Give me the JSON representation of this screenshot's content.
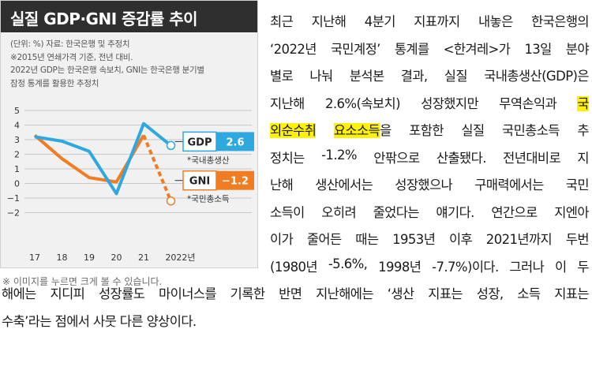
{
  "chart": {
    "title": "실질 GDP·GNI 증감률 추이",
    "notes": [
      "(단위: %) 자료: 한국은행 및 추정치",
      "※2015년 연쇄가격 기준, 전년 대비.",
      "2022년 GDP는 한국은행 속보치, GNI는 한국은행 분기별",
      "잠정 통계를 활용한 추정치"
    ],
    "gdp_badge_label": "GDP",
    "gdp_badge_value": "2.6",
    "gdp_sublabel": "*국내총생산",
    "gni_badge_label": "GNI",
    "gni_badge_value": "−1.2",
    "gni_sublabel": "*국민총소득",
    "colors": {
      "gdp": "#2ea8df",
      "gni": "#f07d24",
      "grid": "#c8c8c8"
    }
  },
  "chart_data": {
    "type": "line",
    "categories": [
      "17",
      "18",
      "19",
      "20",
      "21",
      "2022년"
    ],
    "yticks": [
      "5",
      "4",
      "3",
      "2",
      "1",
      "0",
      "−1",
      "−2"
    ],
    "ylim": [
      -2,
      5
    ],
    "series": [
      {
        "name": "GDP",
        "values": [
          3.2,
          2.9,
          2.2,
          -0.7,
          4.1,
          2.6
        ]
      },
      {
        "name": "GNI",
        "values": [
          3.3,
          1.7,
          0.4,
          0.1,
          3.3,
          -1.2
        ]
      }
    ]
  },
  "caption": "※ 이미지를 누르면 크게 볼 수 있습니다.",
  "article": {
    "lines": [
      {
        "parts": [
          {
            "t": "최근 지난해 4분기 지표까지 내놓은 한국은행의"
          }
        ]
      },
      {
        "parts": [
          {
            "t": "‘2022년 국민계정’ 통계를 <한겨레>가 13일 분야"
          }
        ]
      },
      {
        "parts": [
          {
            "t": "별로 나눠 분석본 결과, 실질 국내총생산(GDP)은"
          }
        ]
      },
      {
        "parts": [
          {
            "t": "지난해 2.6%(속보치) 성장했지만 무역손익과 "
          },
          {
            "t": "국",
            "hl": true
          }
        ]
      },
      {
        "parts": [
          {
            "t": "외순수취 요소소득",
            "hl": true
          },
          {
            "t": "을 포함한 실질 국민총소득 추"
          }
        ]
      },
      {
        "parts": [
          {
            "t": "정치는 -1.2% 안팎으로 산출됐다. 전년대비로 지"
          }
        ]
      },
      {
        "parts": [
          {
            "t": "난해 생산에서는 성장했으나 구매력에서는 국민"
          }
        ]
      },
      {
        "parts": [
          {
            "t": "소득이 오히려 줄었다는 얘기다. 연간으로 지엔아"
          }
        ]
      },
      {
        "parts": [
          {
            "t": "이가 줄어든 때는 1953년 이후 2021년까지 두번"
          }
        ]
      },
      {
        "parts": [
          {
            "t": "(1980년 -5.6%, 1998년 -7.7%)이다. 그러나 이 두"
          }
        ]
      },
      {
        "parts": [
          {
            "t": "해에는 지디피 성장률도 마이너스를 기록한 반면 지난해에는 ‘생산 지표는 성장, 소득 지표는"
          }
        ]
      },
      {
        "parts": [
          {
            "t": "수축’라는 점에서 사뭇 다른 양상이다."
          }
        ]
      }
    ]
  }
}
